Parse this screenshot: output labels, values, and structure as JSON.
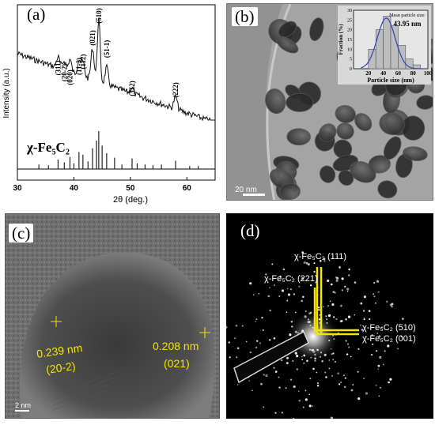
{
  "panel_a": {
    "label": "(a)",
    "ylabel": "Intensity (a.u.)",
    "xlabel": "2θ (deg.)",
    "x_ticks": [
      "30",
      "40",
      "50",
      "60"
    ],
    "phase_label": "χ-Fe₅C₂",
    "peaks": [
      {
        "label": "(311)",
        "x": 37.2
      },
      {
        "label": "(20-2)",
        "x": 38.3
      },
      {
        "label": "(020)",
        "x": 39.3
      },
      {
        "label": "(11-2)",
        "x": 40.9
      },
      {
        "label": "(112)",
        "x": 41.6
      },
      {
        "label": "(021)",
        "x": 43.3
      },
      {
        "label": "(510)",
        "x": 44.4
      },
      {
        "label": "(51-1)",
        "x": 45.8
      },
      {
        "label": "(312)",
        "x": 50.3
      },
      {
        "label": "(222)",
        "x": 58.0
      }
    ],
    "reference_lines": [
      {
        "x": 33.8,
        "h": 0.12
      },
      {
        "x": 35.5,
        "h": 0.1
      },
      {
        "x": 37.2,
        "h": 0.25
      },
      {
        "x": 38.3,
        "h": 0.18
      },
      {
        "x": 39.3,
        "h": 0.32
      },
      {
        "x": 40.0,
        "h": 0.15
      },
      {
        "x": 40.9,
        "h": 0.45
      },
      {
        "x": 41.6,
        "h": 0.38
      },
      {
        "x": 42.5,
        "h": 0.2
      },
      {
        "x": 43.3,
        "h": 0.55
      },
      {
        "x": 44.0,
        "h": 0.75
      },
      {
        "x": 44.4,
        "h": 1.0
      },
      {
        "x": 45.0,
        "h": 0.62
      },
      {
        "x": 45.8,
        "h": 0.42
      },
      {
        "x": 47.2,
        "h": 0.3
      },
      {
        "x": 48.5,
        "h": 0.12
      },
      {
        "x": 50.3,
        "h": 0.28
      },
      {
        "x": 51.2,
        "h": 0.15
      },
      {
        "x": 52.6,
        "h": 0.12
      },
      {
        "x": 54.0,
        "h": 0.1
      },
      {
        "x": 55.5,
        "h": 0.12
      },
      {
        "x": 58.0,
        "h": 0.22
      },
      {
        "x": 60.5,
        "h": 0.08
      },
      {
        "x": 62.0,
        "h": 0.08
      }
    ]
  },
  "panel_b": {
    "label": "(b)",
    "scale_bar": "20 nm",
    "inset": {
      "title": "Mean particle size:",
      "value": "43.95 nm",
      "xlabel": "Particle size (nm)",
      "ylabel": "Fraction (%)",
      "x_ticks": [
        "20",
        "40",
        "60",
        "80",
        "100"
      ],
      "y_ticks": [
        "0",
        "5",
        "10",
        "15",
        "20",
        "25",
        "30"
      ],
      "bins": [
        {
          "x": 25,
          "v": 10
        },
        {
          "x": 35,
          "v": 20
        },
        {
          "x": 45,
          "v": 27
        },
        {
          "x": 55,
          "v": 22
        },
        {
          "x": 65,
          "v": 12
        },
        {
          "x": 75,
          "v": 5
        },
        {
          "x": 85,
          "v": 2
        }
      ]
    }
  },
  "panel_c": {
    "label": "(c)",
    "scale_bar": "2 nm",
    "spacing1": "0.239 nm",
    "plane1": "(20-2)",
    "spacing2": "0.208 nm",
    "plane2": "(021)"
  },
  "panel_d": {
    "label": "(d)",
    "ring1": "χ-Fe₅C₂ (111)",
    "ring2": "χ-Fe₅C₂ (221)",
    "ring3": "χ-Fe₅C₂ (510)",
    "ring4": "χ-Fe₅C₂ (001)",
    "accent": "#f5e600"
  }
}
